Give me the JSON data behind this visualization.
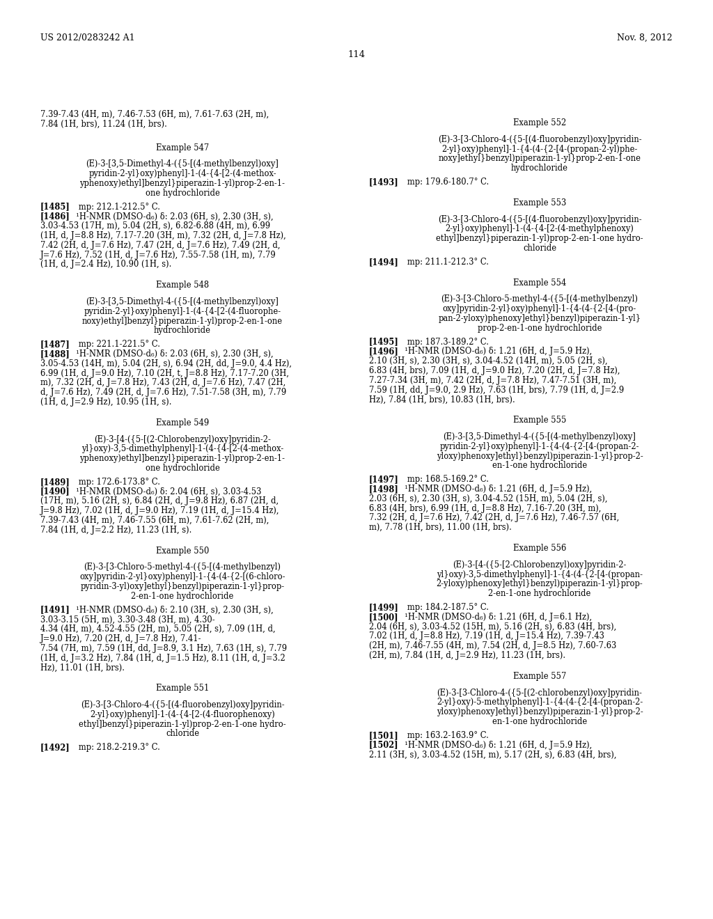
{
  "header_left": "US 2012/0283242 A1",
  "header_right": "Nov. 8, 2012",
  "page_number": "114",
  "background_color": "#ffffff",
  "text_color": "#000000"
}
